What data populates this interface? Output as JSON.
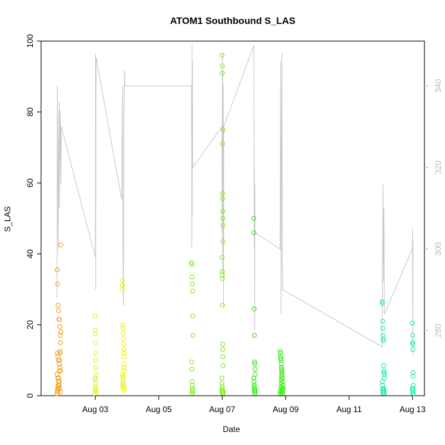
{
  "chart_data": {
    "type": "scatter",
    "title": "ATOM1 Southbound S_LAS",
    "xlabel": "Date",
    "ylabel": "S_LAS",
    "xlim": [
      "2016-08-01T07:00",
      "2016-08-13T09:00"
    ],
    "ylim": [
      0,
      100
    ],
    "x_ticks": [
      {
        "value": "2016-08-03",
        "label": "Aug 03"
      },
      {
        "value": "2016-08-05",
        "label": "Aug 05"
      },
      {
        "value": "2016-08-07",
        "label": "Aug 07"
      },
      {
        "value": "2016-08-09",
        "label": "Aug 09"
      },
      {
        "value": "2016-08-11",
        "label": "Aug 11"
      },
      {
        "value": "2016-08-13",
        "label": "Aug 13"
      }
    ],
    "y_ticks": [
      0,
      20,
      40,
      60,
      80,
      100
    ],
    "secondary_axis": {
      "side": "right",
      "ylim": [
        264,
        351
      ],
      "ticks": [
        280,
        300,
        320,
        340
      ],
      "color": "#bdbdbd"
    },
    "grid": false,
    "legend": "none",
    "series": [
      {
        "color": "#f39c12",
        "x": [
          "2016-08-01T19:00",
          "2016-08-01T19:20",
          "2016-08-01T19:40",
          "2016-08-01T20:00",
          "2016-08-01T20:20",
          "2016-08-01T20:40",
          "2016-08-01T21:00",
          "2016-08-01T21:20",
          "2016-08-01T21:40",
          "2016-08-01T22:00",
          "2016-08-01T19:10",
          "2016-08-01T19:30",
          "2016-08-01T19:50",
          "2016-08-01T20:10",
          "2016-08-01T20:30",
          "2016-08-01T20:50",
          "2016-08-01T21:10",
          "2016-08-01T21:30",
          "2016-08-01T19:15",
          "2016-08-01T19:45",
          "2016-08-01T20:15",
          "2016-08-01T20:45",
          "2016-08-01T21:15",
          "2016-08-01T21:45",
          "2016-08-01T19:05",
          "2016-08-01T19:35",
          "2016-08-01T20:05",
          "2016-08-01T20:35",
          "2016-08-01T21:05",
          "2016-08-01T21:35",
          "2016-08-01T19:25",
          "2016-08-01T19:55",
          "2016-08-01T20:25",
          "2016-08-01T20:55",
          "2016-08-01T21:25",
          "2016-08-01T21:55"
        ],
        "y": [
          0.5,
          1.5,
          2.5,
          3,
          5,
          7,
          10,
          12,
          15,
          42.5,
          35.5,
          31.5,
          25.5,
          24,
          21.5,
          21.5,
          19.5,
          17,
          12,
          11,
          10,
          9,
          8,
          7,
          6,
          5,
          4,
          3,
          2,
          1,
          1,
          2,
          3,
          4,
          12.5,
          18
        ]
      },
      {
        "color": "#e6f20a",
        "x": [
          "2016-08-02T23:50",
          "2016-08-03T00:00",
          "2016-08-03T00:05",
          "2016-08-03T00:10",
          "2016-08-03T00:15",
          "2016-08-03T00:20",
          "2016-08-03T00:25",
          "2016-08-03T00:30",
          "2016-08-02T23:55",
          "2016-08-03T00:08",
          "2016-08-03T00:12",
          "2016-08-03T00:18",
          "2016-08-03T00:22",
          "2016-08-03T00:28",
          "2016-08-03T00:02",
          "2016-08-03T00:16",
          "2016-08-03T20:20",
          "2016-08-03T20:30",
          "2016-08-03T20:40",
          "2016-08-03T20:50",
          "2016-08-03T21:00",
          "2016-08-03T21:10",
          "2016-08-03T21:20",
          "2016-08-03T21:30",
          "2016-08-03T21:40",
          "2016-08-03T21:50",
          "2016-08-03T22:00",
          "2016-08-03T22:10",
          "2016-08-03T20:25",
          "2016-08-03T20:45",
          "2016-08-03T21:05",
          "2016-08-03T21:25",
          "2016-08-03T21:45",
          "2016-08-03T22:05",
          "2016-08-03T20:35",
          "2016-08-03T20:55",
          "2016-08-03T21:15",
          "2016-08-03T21:35",
          "2016-08-03T21:55"
        ],
        "y": [
          22.5,
          18.5,
          17.5,
          15,
          12,
          10,
          8,
          6,
          5,
          4.5,
          3.5,
          2.5,
          1.5,
          1,
          0.5,
          2,
          32.5,
          31,
          30,
          20,
          19,
          17.5,
          16,
          14.5,
          13,
          11,
          9,
          7,
          6,
          5,
          4,
          3,
          2,
          1.5,
          2.5,
          3.5,
          5.5,
          8,
          12
        ]
      },
      {
        "color": "#7fe81a",
        "x": [
          "2016-08-06T00:50",
          "2016-08-06T01:00",
          "2016-08-06T01:10",
          "2016-08-06T01:20",
          "2016-08-06T01:30",
          "2016-08-06T01:40",
          "2016-08-06T01:50",
          "2016-08-06T00:55",
          "2016-08-06T01:05",
          "2016-08-06T01:15",
          "2016-08-06T01:25",
          "2016-08-06T01:35",
          "2016-08-06T01:45",
          "2016-08-06T01:00",
          "2016-08-06T01:20",
          "2016-08-06T23:50",
          "2016-08-07T00:00",
          "2016-08-07T00:05",
          "2016-08-07T00:10",
          "2016-08-07T00:15",
          "2016-08-07T00:20",
          "2016-08-07T00:25",
          "2016-08-07T00:30",
          "2016-08-07T00:35",
          "2016-08-07T00:40",
          "2016-08-06T23:55",
          "2016-08-07T00:02",
          "2016-08-07T00:07",
          "2016-08-07T00:12",
          "2016-08-07T00:17",
          "2016-08-07T00:22",
          "2016-08-07T00:27",
          "2016-08-07T00:32",
          "2016-08-07T00:37",
          "2016-08-06T23:45",
          "2016-08-06T23:52",
          "2016-08-07T00:04",
          "2016-08-07T00:14",
          "2016-08-07T00:24",
          "2016-08-07T00:34",
          "2016-08-07T00:44",
          "2016-08-06T23:48",
          "2016-08-06T23:58",
          "2016-08-07T00:09",
          "2016-08-07T00:19",
          "2016-08-07T00:29",
          "2016-08-07T00:39"
        ],
        "y": [
          37.5,
          37,
          33.5,
          31.5,
          29.5,
          22.5,
          17,
          9.5,
          7.5,
          4,
          3,
          2,
          1,
          0.5,
          1.5,
          96,
          93,
          91,
          71,
          57,
          55.5,
          52,
          50,
          48,
          43.5,
          39,
          35,
          34,
          33,
          25.5,
          14.5,
          13,
          11,
          8.5,
          5,
          3.5,
          2.5,
          1.5,
          1,
          0.5,
          1,
          2,
          1.5,
          1,
          0.5,
          1,
          75
        ]
      },
      {
        "color": "#33e80a",
        "x": [
          "2016-08-07T23:50",
          "2016-08-08T00:00",
          "2016-08-08T00:10",
          "2016-08-08T00:20",
          "2016-08-08T00:30",
          "2016-08-08T00:40",
          "2016-08-08T00:50",
          "2016-08-08T01:00",
          "2016-08-07T23:55",
          "2016-08-08T00:05",
          "2016-08-08T00:15",
          "2016-08-08T00:25",
          "2016-08-08T00:35",
          "2016-08-08T00:45",
          "2016-08-08T00:55",
          "2016-08-08T00:08",
          "2016-08-08T00:28",
          "2016-08-08T00:48",
          "2016-08-08T19:50",
          "2016-08-08T20:00",
          "2016-08-08T20:10",
          "2016-08-08T20:20",
          "2016-08-08T20:30",
          "2016-08-08T20:40",
          "2016-08-08T20:50",
          "2016-08-08T21:00",
          "2016-08-08T21:10",
          "2016-08-08T21:20",
          "2016-08-08T21:30",
          "2016-08-08T21:40",
          "2016-08-08T21:50",
          "2016-08-08T22:00",
          "2016-08-08T19:55",
          "2016-08-08T20:05",
          "2016-08-08T20:15",
          "2016-08-08T20:25",
          "2016-08-08T20:35",
          "2016-08-08T20:45",
          "2016-08-08T20:55",
          "2016-08-08T21:05",
          "2016-08-08T21:15",
          "2016-08-08T21:25",
          "2016-08-08T21:35",
          "2016-08-08T21:45",
          "2016-08-08T21:55"
        ],
        "y": [
          50,
          46,
          24.5,
          17,
          9.5,
          9,
          7.5,
          6,
          5,
          4,
          3,
          2,
          1.5,
          1,
          1.5,
          2.5,
          1,
          0.5,
          12.5,
          12,
          11,
          10.5,
          10,
          9,
          8,
          7.5,
          6.5,
          6,
          5,
          4,
          3,
          2,
          1,
          0.5,
          1.5,
          2.5,
          3.5,
          4.5,
          5.5,
          7,
          2,
          1,
          0.5,
          1.5,
          3
        ]
      },
      {
        "color": "#1de9a7",
        "x": [
          "2016-08-12T01:00",
          "2016-08-12T01:10",
          "2016-08-12T01:20",
          "2016-08-12T01:30",
          "2016-08-12T01:40",
          "2016-08-12T01:50",
          "2016-08-12T02:00",
          "2016-08-12T02:10",
          "2016-08-12T02:20",
          "2016-08-12T02:30",
          "2016-08-12T02:40",
          "2016-08-12T02:50",
          "2016-08-12T01:05",
          "2016-08-12T01:15",
          "2016-08-12T01:25",
          "2016-08-12T01:35",
          "2016-08-12T01:45",
          "2016-08-12T01:55",
          "2016-08-12T02:05",
          "2016-08-12T02:15",
          "2016-08-12T02:25",
          "2016-08-12T02:35",
          "2016-08-12T23:50",
          "2016-08-13T00:00",
          "2016-08-13T00:05",
          "2016-08-13T00:10",
          "2016-08-13T00:15",
          "2016-08-13T00:20",
          "2016-08-13T00:25",
          "2016-08-13T00:30",
          "2016-08-12T23:55",
          "2016-08-13T00:02",
          "2016-08-13T00:07",
          "2016-08-13T00:12",
          "2016-08-13T00:17",
          "2016-08-13T00:22"
        ],
        "y": [
          26.5,
          26,
          21,
          19,
          17,
          16,
          15.5,
          8.5,
          7,
          6.5,
          6,
          5,
          4,
          3,
          2,
          1.5,
          1,
          0.5,
          1,
          2,
          1.5,
          0.5,
          20.5,
          17,
          15,
          14.5,
          13,
          6.5,
          5.5,
          3,
          2,
          1.5,
          1,
          0.5,
          1,
          2
        ]
      }
    ],
    "line_secondary": {
      "color": "#c8c8c8",
      "x": [
        "2016-08-01T19:00",
        "2016-08-01T19:20",
        "2016-08-01T19:40",
        "2016-08-01T20:00",
        "2016-08-01T20:20",
        "2016-08-01T20:40",
        "2016-08-01T21:00",
        "2016-08-01T21:20",
        "2016-08-01T21:40",
        "2016-08-01T22:00",
        "2016-08-01T22:20",
        "2016-08-03T00:00",
        "2016-08-03T00:10",
        "2016-08-03T00:20",
        "2016-08-03T00:30",
        "2016-08-03T00:40",
        "2016-08-03T20:00",
        "2016-08-03T20:20",
        "2016-08-03T20:40",
        "2016-08-03T21:00",
        "2016-08-03T21:20",
        "2016-08-03T21:40",
        "2016-08-03T22:00",
        "2016-08-03T22:20",
        "2016-08-06T00:50",
        "2016-08-06T01:00",
        "2016-08-06T01:10",
        "2016-08-06T01:20",
        "2016-08-06T01:30",
        "2016-08-06T01:40",
        "2016-08-06T01:50",
        "2016-08-06T23:50",
        "2016-08-07T00:00",
        "2016-08-07T00:10",
        "2016-08-07T00:20",
        "2016-08-07T00:30",
        "2016-08-07T00:40",
        "2016-08-07T00:50",
        "2016-08-07T01:00",
        "2016-08-07T01:10",
        "2016-08-08T00:00",
        "2016-08-08T00:10",
        "2016-08-08T00:20",
        "2016-08-08T00:30",
        "2016-08-08T00:40",
        "2016-08-08T00:50",
        "2016-08-08T19:50",
        "2016-08-08T20:10",
        "2016-08-08T20:30",
        "2016-08-08T20:50",
        "2016-08-08T21:10",
        "2016-08-08T21:30",
        "2016-08-08T21:50",
        "2016-08-12T01:00",
        "2016-08-12T01:20",
        "2016-08-12T01:40",
        "2016-08-12T02:00",
        "2016-08-12T02:20",
        "2016-08-12T02:40",
        "2016-08-12T23:50",
        "2016-08-13T00:00",
        "2016-08-13T00:10",
        "2016-08-13T00:20"
      ],
      "y": [
        288,
        340,
        318,
        300,
        322,
        336,
        310,
        334,
        330,
        316,
        330,
        298,
        348,
        290,
        338,
        347,
        312,
        326,
        340,
        298,
        286,
        332,
        344,
        340,
        340,
        300,
        350,
        308,
        346,
        322,
        320,
        330,
        304,
        348,
        294,
        344,
        318,
        340,
        286,
        330,
        350,
        300,
        320,
        280,
        316,
        304,
        300,
        346,
        284,
        324,
        348,
        296,
        290,
        276,
        300,
        316,
        292,
        310,
        284,
        300,
        305,
        274,
        302
      ]
    }
  }
}
